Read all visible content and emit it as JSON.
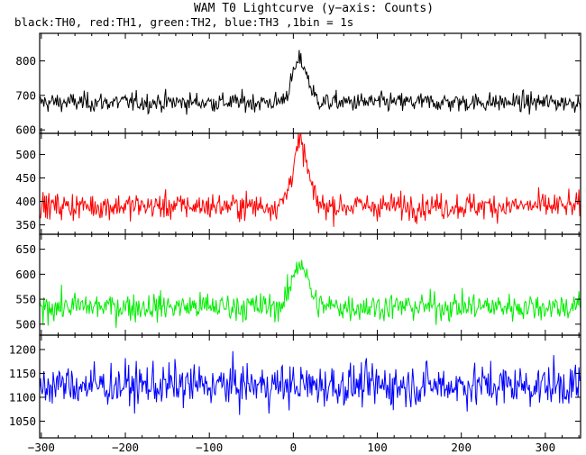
{
  "header": {
    "title": "WAM T0 Lightcurve (y−axis: Counts)",
    "subtitle": "black:TH0, red:TH1, green:TH2, blue:TH3 ,1bin = 1s"
  },
  "chart_data": [
    {
      "type": "line",
      "series": [
        {
          "name": "TH0",
          "color": "#000000",
          "baseline": 680,
          "noise": 22,
          "peak": 120
        }
      ],
      "x_range": [
        -302,
        342
      ],
      "ylim": [
        590,
        880
      ],
      "yticks": [
        600,
        700,
        800
      ],
      "x_label": "",
      "y_label": ""
    },
    {
      "type": "line",
      "series": [
        {
          "name": "TH1",
          "color": "#ff0000",
          "baseline": 390,
          "noise": 22,
          "peak": 130
        }
      ],
      "x_range": [
        -302,
        342
      ],
      "ylim": [
        330,
        545
      ],
      "yticks": [
        350,
        400,
        450,
        500
      ],
      "x_label": "",
      "y_label": ""
    },
    {
      "type": "line",
      "series": [
        {
          "name": "TH2",
          "color": "#00ee00",
          "baseline": 535,
          "noise": 22,
          "peak": 90
        }
      ],
      "x_range": [
        -302,
        342
      ],
      "ylim": [
        478,
        680
      ],
      "yticks": [
        500,
        550,
        600,
        650
      ],
      "x_label": "",
      "y_label": ""
    },
    {
      "type": "line",
      "series": [
        {
          "name": "TH3",
          "color": "#0000ff",
          "baseline": 1125,
          "noise": 35,
          "peak": 0
        }
      ],
      "x_range": [
        -302,
        342
      ],
      "ylim": [
        1015,
        1230
      ],
      "yticks": [
        1050,
        1100,
        1150,
        1200
      ],
      "x_label": "",
      "y_label": ""
    }
  ],
  "x_axis": {
    "range": [
      -302,
      342
    ],
    "ticks": [
      -300,
      -200,
      -100,
      0,
      100,
      200,
      300
    ],
    "minor_step": 20
  }
}
